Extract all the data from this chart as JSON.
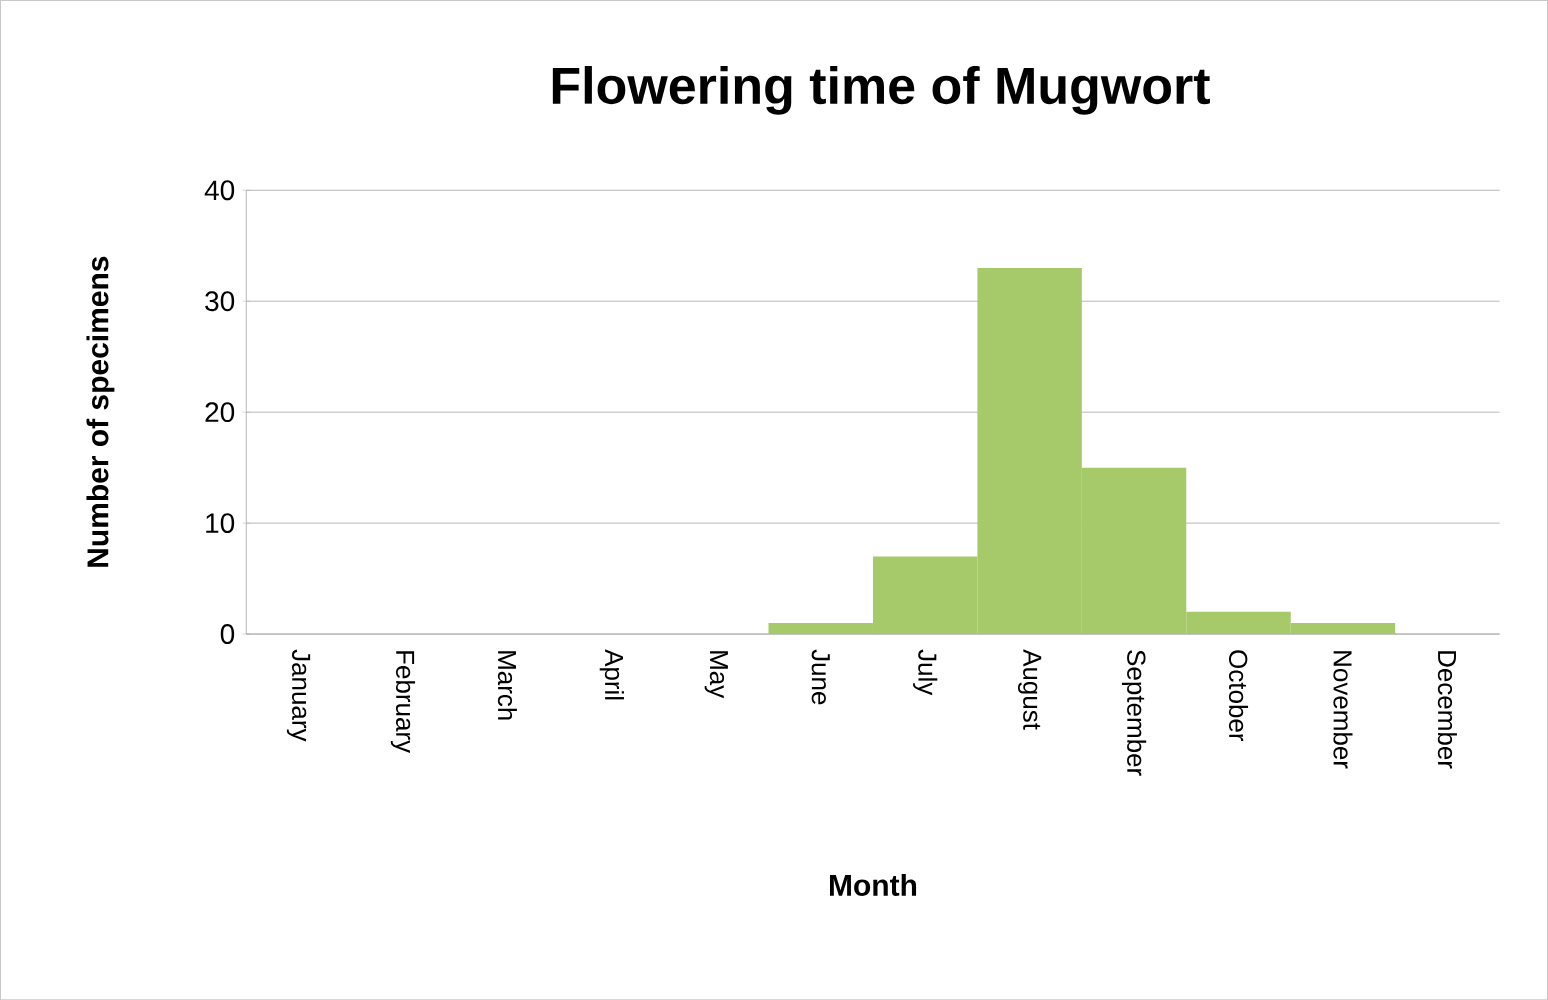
{
  "chart_data": {
    "type": "bar",
    "title": "Flowering time of Mugwort",
    "xlabel": "Month",
    "ylabel": "Number of specimens",
    "categories": [
      "January",
      "February",
      "March",
      "April",
      "May",
      "June",
      "July",
      "August",
      "September",
      "October",
      "November",
      "December"
    ],
    "values": [
      0,
      0,
      0,
      0,
      0,
      1,
      7,
      33,
      15,
      2,
      1,
      0
    ],
    "color": "#a6c96a",
    "ylim": [
      0,
      40
    ],
    "yticks": [
      0,
      10,
      20,
      30,
      40
    ],
    "grid": "y"
  }
}
